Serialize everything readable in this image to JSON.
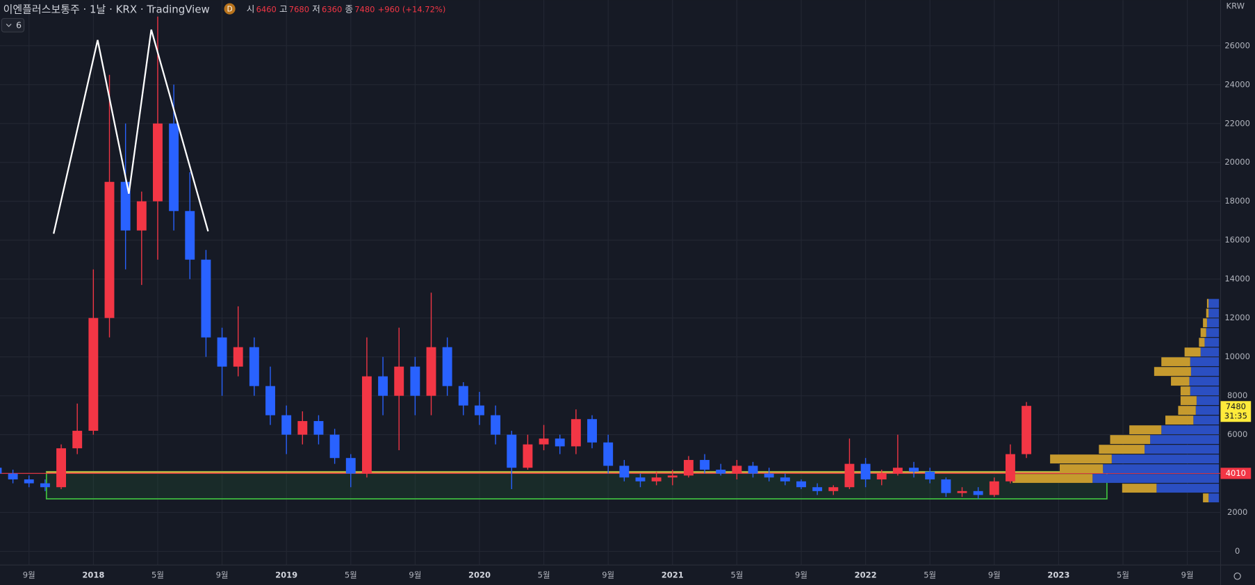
{
  "chart_data": {
    "type": "candlestick",
    "title": "이엔플러스보통주 · 1날 · KRX · TradingView",
    "interval_badge": "D",
    "ohlc": {
      "open_label": "시",
      "open": 6460,
      "high_label": "고",
      "high": 7680,
      "low_label": "저",
      "low": 6360,
      "close_label": "종",
      "close": 7480,
      "change": "+960 (+14.72%)"
    },
    "indicator_count": 6,
    "currency": "KRW",
    "categories": [
      null,
      null,
      "9월",
      null,
      null,
      null,
      "2018",
      null,
      null,
      null,
      "5월",
      null,
      null,
      null,
      "9월",
      null,
      null,
      null,
      "2019",
      null,
      null,
      null,
      "5월",
      null,
      null,
      null,
      "9월",
      null,
      null,
      null,
      "2020",
      null,
      null,
      null,
      "5월",
      null,
      null,
      null,
      "9월",
      null,
      null,
      null,
      "2021",
      null,
      null,
      null,
      "5월",
      null,
      null,
      null,
      "9월",
      null,
      null,
      null,
      "2022",
      null,
      null,
      null,
      "5월",
      null,
      null,
      null,
      "9월",
      null,
      null,
      null,
      "2023",
      null,
      null,
      null,
      "5월",
      null,
      null,
      null,
      "9월"
    ],
    "open": [
      4300,
      4000,
      3700,
      3500,
      3300,
      5300,
      6200,
      12000,
      19000,
      16500,
      18000,
      22000,
      17500,
      15000,
      11000,
      9500,
      10500,
      8500,
      7000,
      6000,
      6700,
      6000,
      4800,
      4000,
      9000,
      8000,
      9500,
      8000,
      10500,
      8500,
      7500,
      7000,
      6000,
      4300,
      5500,
      5800,
      5400,
      6800,
      5600,
      4400,
      3800,
      3600,
      3800,
      3900,
      4700,
      4200,
      4000,
      4400,
      4000,
      3800,
      3600,
      3300,
      3100,
      3300,
      4500,
      3700,
      4000,
      4300,
      4100,
      3700,
      3000,
      3100,
      2900,
      3600,
      5000,
      null,
      null,
      null,
      null,
      null,
      null,
      null,
      null,
      null,
      null
    ],
    "high": [
      4500,
      4200,
      3900,
      3700,
      5500,
      7600,
      14500,
      24500,
      22000,
      18500,
      27500,
      24000,
      19500,
      15500,
      11500,
      12600,
      11000,
      9500,
      7500,
      7200,
      7000,
      6300,
      5000,
      11000,
      10000,
      11500,
      10000,
      13300,
      11000,
      8700,
      8200,
      7500,
      6200,
      6000,
      6500,
      6000,
      7300,
      7000,
      6000,
      4700,
      4000,
      4100,
      4200,
      4900,
      5000,
      4500,
      4700,
      4600,
      4300,
      4000,
      3700,
      3500,
      3400,
      5800,
      4800,
      4200,
      6000,
      4600,
      4300,
      3800,
      3300,
      3300,
      3800,
      5500,
      7680,
      null,
      null,
      null,
      null,
      null,
      null,
      null,
      null,
      null,
      null
    ],
    "low": [
      3900,
      3500,
      3300,
      3100,
      3200,
      5000,
      6000,
      11000,
      14500,
      13700,
      15000,
      16500,
      14000,
      10000,
      8000,
      9000,
      8000,
      6500,
      5000,
      5500,
      5500,
      4500,
      3300,
      3800,
      7000,
      5200,
      7000,
      7000,
      8000,
      7000,
      6500,
      5500,
      3200,
      4200,
      5200,
      5000,
      5000,
      5300,
      4000,
      3600,
      3300,
      3400,
      3400,
      3800,
      4000,
      3900,
      3700,
      3800,
      3600,
      3400,
      3200,
      2900,
      2900,
      3200,
      3300,
      3400,
      3900,
      3800,
      3500,
      2800,
      2800,
      2700,
      2800,
      3500,
      4800,
      null,
      null,
      null,
      null,
      null,
      null,
      null,
      null,
      null,
      null
    ],
    "close": [
      4000,
      3700,
      3500,
      3300,
      5300,
      6200,
      12000,
      19000,
      16500,
      18000,
      22000,
      17500,
      15000,
      11000,
      9500,
      10500,
      8500,
      7000,
      6000,
      6700,
      6000,
      4800,
      4000,
      9000,
      8000,
      9500,
      8000,
      10500,
      8500,
      7500,
      7000,
      6000,
      4300,
      5500,
      5800,
      5400,
      6800,
      5600,
      4400,
      3800,
      3600,
      3800,
      3900,
      4700,
      4200,
      4000,
      4400,
      4000,
      3800,
      3600,
      3300,
      3100,
      3300,
      4500,
      3700,
      4000,
      4300,
      4100,
      3700,
      3000,
      3100,
      2900,
      3600,
      5000,
      7480,
      null,
      null,
      null,
      null,
      null,
      null,
      null,
      null,
      null,
      null
    ],
    "up_color": "#f23645",
    "down_color": "#2962ff",
    "ylim": [
      -700,
      28350
    ],
    "yticks": [
      0,
      2000,
      4000,
      6000,
      8000,
      10000,
      12000,
      14000,
      16000,
      18000,
      20000,
      22000,
      24000,
      26000
    ],
    "grid": true,
    "last_price": 7480,
    "countdown": "31:35",
    "level_price": 4010,
    "support_zone": [
      2700,
      4100
    ],
    "volume_profile": {
      "bins": [
        2500,
        3000,
        3500,
        4000,
        4500,
        5000,
        5500,
        6000,
        6500,
        7000,
        7500,
        8000,
        8500,
        9000,
        9500,
        10000,
        10500,
        11000,
        11500,
        12000,
        12500,
        13000
      ],
      "up": [
        13,
        78,
        158,
        145,
        134,
        93,
        86,
        72,
        32,
        29,
        28,
        36,
        37,
        35,
        36,
        23,
        18,
        16,
        15,
        13,
        13
      ],
      "down": [
        7,
        43,
        100,
        54,
        77,
        57,
        50,
        40,
        35,
        22,
        20,
        12,
        23,
        46,
        36,
        20,
        7,
        7,
        5,
        3,
        2
      ],
      "up_color": "#2b4fc2",
      "down_color": "#c69a2e"
    }
  }
}
